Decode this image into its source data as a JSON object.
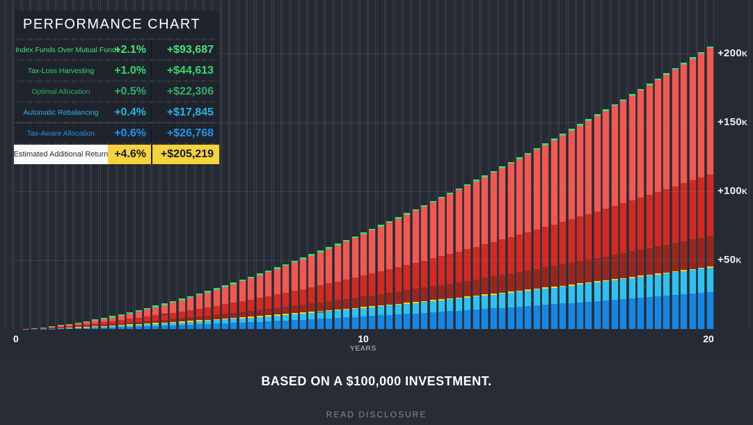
{
  "legend": {
    "title": "PERFORMANCE CHART",
    "rows": [
      {
        "label": "Index Funds Over Mutual Funds",
        "pct": "+2.1%",
        "amount": "+$93,687",
        "color": "#45e17b"
      },
      {
        "label": "Tax-Loss Harvesting",
        "pct": "+1.0%",
        "amount": "+$44,613",
        "color": "#37d96e"
      },
      {
        "label": "Optimal Allocation",
        "pct": "+0.5%",
        "amount": "+$22,306",
        "color": "#2fae68"
      },
      {
        "label": "Automatic Rebalancing",
        "pct": "+0.4%",
        "amount": "+$17,845",
        "color": "#27b2e8"
      },
      {
        "label": "Tax-Aware Allocation",
        "pct": "+0.6%",
        "amount": "+$26,768",
        "color": "#1f93f0"
      },
      {
        "label": "Estimated Additional Return",
        "pct": "+4.6%",
        "amount": "+$205,219",
        "highlight": true
      }
    ]
  },
  "chart_data": {
    "type": "stacked-bar",
    "title": "PERFORMANCE CHART",
    "subtitle": "BASED ON A $100,000 INVESTMENT.",
    "num_bars": 80,
    "bars_per_year": 4,
    "final_total": 205219,
    "growth_model": {
      "type": "power",
      "exponent": 1.55,
      "note": "bar totals estimated from pixel heights: total(t)=205219*(t/20)^1.55"
    },
    "totals_by_year_estimate": [
      0,
      1976,
      5787,
      10835,
      16951,
      23928,
      31747,
      40325,
      49601,
      59513,
      70082,
      81246,
      92964,
      105257,
      118062,
      131402,
      145233,
      159517,
      174293,
      189540,
      205219
    ],
    "series": [
      {
        "name": "Tax-Aware Allocation",
        "color": "#1287e8",
        "final_value": 26768
      },
      {
        "name": "Automatic Rebalancing",
        "color": "#2cc3f2",
        "final_value": 17845
      },
      {
        "name": "Optimal Allocation",
        "color": "#9e241a",
        "final_value": 22306
      },
      {
        "name": "Tax-Loss Harvesting",
        "color": "#d9271e",
        "final_value": 44613
      },
      {
        "name": "Index Funds Over Mutual Funds",
        "color": "#f4574f",
        "final_value": 93687
      }
    ],
    "decor": {
      "cap_color": "#3fd96f",
      "divider_strip_color": "#ffd60a"
    },
    "x": {
      "ticks": [
        "0",
        "10",
        "20"
      ],
      "label": "YEARS",
      "min": 0,
      "max": 20
    },
    "y": {
      "ticks": [
        {
          "text": "+50",
          "suffix": "K",
          "value": 50000
        },
        {
          "text": "+100",
          "suffix": "K",
          "value": 100000
        },
        {
          "text": "+150",
          "suffix": "K",
          "value": 150000
        },
        {
          "text": "+200",
          "suffix": "K",
          "value": 200000
        }
      ],
      "min": 0
    },
    "colors": {
      "background": "#262a33",
      "grid": "#8892a6"
    }
  },
  "footer": {
    "headline": "BASED ON A $100,000 INVESTMENT.",
    "disclosure": "READ DISCLOSURE"
  }
}
